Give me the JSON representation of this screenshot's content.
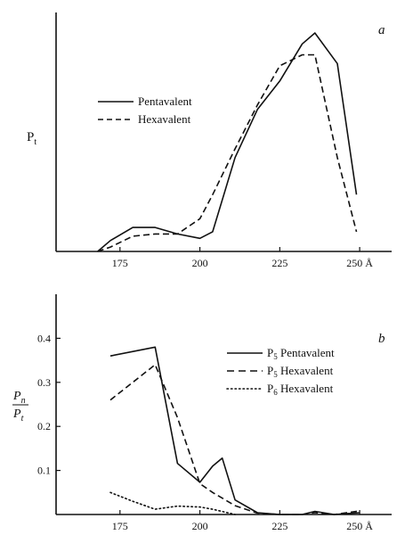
{
  "chart_data": [
    {
      "type": "line",
      "panel_label": "a",
      "ylabel_main": "P",
      "ylabel_sub": "t",
      "x_ticks": [
        "175",
        "200",
        "225",
        "250 Å"
      ],
      "xlim": [
        155,
        260
      ],
      "ylim": [
        0,
        1
      ],
      "grid": false,
      "legend_position": "top-left",
      "series": [
        {
          "name": "Pentavalent",
          "style": "solid",
          "x": [
            168,
            172,
            179,
            186,
            193,
            200,
            204,
            211,
            218,
            225,
            232,
            236,
            243,
            249
          ],
          "y": [
            0.0,
            0.05,
            0.11,
            0.11,
            0.08,
            0.06,
            0.09,
            0.43,
            0.65,
            0.78,
            0.95,
            1.0,
            0.86,
            0.26
          ]
        },
        {
          "name": "Hexavalent",
          "style": "dashed",
          "x": [
            168,
            172,
            179,
            186,
            193,
            200,
            204,
            211,
            218,
            225,
            232,
            236,
            243,
            249
          ],
          "y": [
            0.0,
            0.02,
            0.07,
            0.08,
            0.08,
            0.15,
            0.26,
            0.47,
            0.67,
            0.85,
            0.9,
            0.9,
            0.43,
            0.09
          ]
        }
      ]
    },
    {
      "type": "line",
      "panel_label": "b",
      "ylabel_num_main": "P",
      "ylabel_num_sub": "n",
      "ylabel_den_main": "P",
      "ylabel_den_sub": "t",
      "x_ticks": [
        "175",
        "200",
        "225",
        "250 Å"
      ],
      "y_ticks": [
        "0.1",
        "0.2",
        "0.3",
        "0.4"
      ],
      "xlim": [
        155,
        260
      ],
      "ylim": [
        0,
        0.5
      ],
      "grid": false,
      "legend_position": "top-right",
      "series": [
        {
          "name_main": "P",
          "name_sub": "5",
          "name_rest": "Pentavalent",
          "style": "solid",
          "x": [
            172,
            186,
            193,
            200,
            204,
            207,
            211,
            218,
            225,
            232,
            236,
            242,
            250
          ],
          "y": [
            0.36,
            0.38,
            0.116,
            0.073,
            0.11,
            0.128,
            0.033,
            0.004,
            0.0,
            0.0,
            0.007,
            0.0,
            0.004
          ]
        },
        {
          "name_main": "P",
          "name_sub": "5",
          "name_rest": "Hexavalent",
          "style": "dashed",
          "x": [
            172,
            186,
            193,
            200,
            204,
            211,
            218,
            225,
            232,
            236,
            242,
            250
          ],
          "y": [
            0.26,
            0.34,
            0.22,
            0.07,
            0.05,
            0.02,
            0.003,
            0.0,
            0.0,
            0.004,
            0.0,
            0.008
          ]
        },
        {
          "name_main": "P",
          "name_sub": "6",
          "name_rest": "Hexavalent",
          "style": "dotted",
          "x": [
            172,
            179,
            186,
            193,
            200,
            204,
            211
          ],
          "y": [
            0.05,
            0.03,
            0.012,
            0.019,
            0.017,
            0.012,
            0.0
          ]
        }
      ]
    }
  ]
}
